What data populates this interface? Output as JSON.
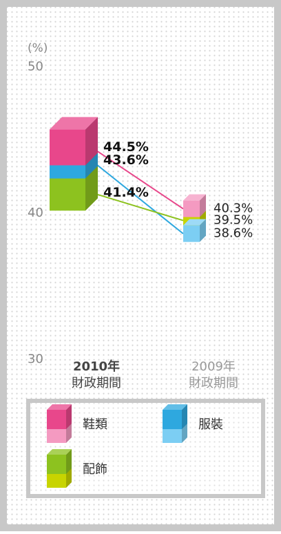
{
  "chart_data": {
    "type": "slope",
    "y_axis_label": "(%)",
    "categories": [
      [
        "2010年",
        "財政期間"
      ],
      [
        "2009年",
        "財政期間"
      ]
    ],
    "ylim": [
      30,
      50
    ],
    "yticks": [
      30,
      40,
      50
    ],
    "series": [
      {
        "name": "鞋類",
        "colors": [
          "#e8478b",
          "#f49ac1"
        ],
        "values": [
          44.5,
          40.3
        ],
        "value_labels": [
          "44.5%",
          "40.3%"
        ]
      },
      {
        "name": "服裝",
        "colors": [
          "#2ea8df",
          "#7ccef3"
        ],
        "values": [
          43.6,
          38.6
        ],
        "value_labels": [
          "43.6%",
          "38.6%"
        ]
      },
      {
        "name": "配飾",
        "colors": [
          "#8dc21f",
          "#c8d400"
        ],
        "values": [
          41.4,
          39.5
        ],
        "value_labels": [
          "41.4%",
          "39.5%"
        ]
      }
    ]
  }
}
